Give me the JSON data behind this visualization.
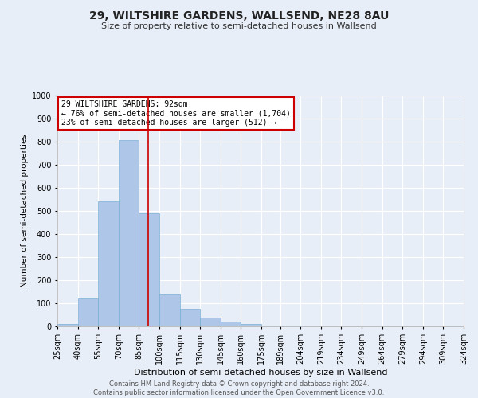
{
  "title": "29, WILTSHIRE GARDENS, WALLSEND, NE28 8AU",
  "subtitle": "Size of property relative to semi-detached houses in Wallsend",
  "xlabel": "Distribution of semi-detached houses by size in Wallsend",
  "ylabel": "Number of semi-detached properties",
  "footer_line1": "Contains HM Land Registry data © Crown copyright and database right 2024.",
  "footer_line2": "Contains public sector information licensed under the Open Government Licence v3.0.",
  "annotation_line1": "29 WILTSHIRE GARDENS: 92sqm",
  "annotation_line2": "← 76% of semi-detached houses are smaller (1,704)",
  "annotation_line3": "23% of semi-detached houses are larger (512) →",
  "property_size": 92,
  "bin_edges": [
    25,
    40,
    55,
    70,
    85,
    100,
    115,
    130,
    145,
    160,
    175,
    189,
    204,
    219,
    234,
    249,
    264,
    279,
    294,
    309,
    324
  ],
  "bar_values": [
    10,
    122,
    540,
    807,
    490,
    140,
    75,
    37,
    22,
    12,
    5,
    3,
    1,
    0,
    0,
    0,
    0,
    0,
    0,
    5
  ],
  "bar_color": "#aec6e8",
  "bar_edge_color": "#7bafd4",
  "vline_color": "#cc0000",
  "annotation_box_color": "#cc0000",
  "page_bg_color": "#e8eef7",
  "plot_bg_color": "#e8eef7",
  "grid_color": "#ffffff",
  "ylim": [
    0,
    1000
  ],
  "yticks": [
    0,
    100,
    200,
    300,
    400,
    500,
    600,
    700,
    800,
    900,
    1000
  ],
  "title_fontsize": 10,
  "subtitle_fontsize": 8,
  "ylabel_fontsize": 7.5,
  "xlabel_fontsize": 8,
  "tick_fontsize": 7,
  "annotation_fontsize": 7,
  "footer_fontsize": 6
}
